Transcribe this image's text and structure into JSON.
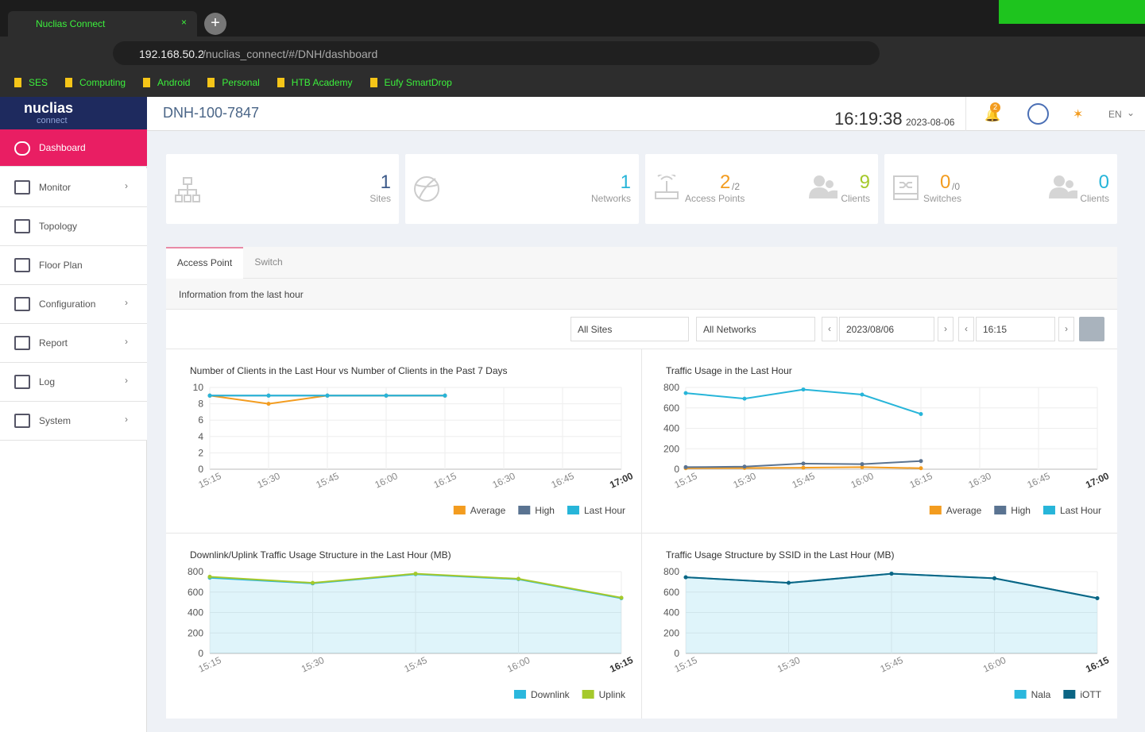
{
  "browser": {
    "tab_title": "Nuclias Connect",
    "url_host": "192.168.50.2",
    "url_path": "/nuclias_connect/#/DNH/dashboard",
    "bookmarks": [
      "SES",
      "Computing",
      "Android",
      "Personal",
      "HTB Academy",
      "Eufy SmartDrop"
    ]
  },
  "sidebar": {
    "logo": "nuclias",
    "logo_sub": "connect",
    "menu": [
      "Dashboard",
      "Monitor",
      "Topology",
      "Floor Plan",
      "Configuration",
      "Report",
      "Log",
      "System"
    ]
  },
  "header": {
    "device": "DNH-100-7847",
    "time": "16:19:38",
    "date": "2023-08-06",
    "notifications": 2,
    "language": "EN"
  },
  "cards": [
    {
      "value": 1,
      "label": "Sites"
    },
    {
      "value": 1,
      "label": "Networks"
    },
    {
      "value": 2,
      "total": "/2",
      "label": "Access Points",
      "clients": 9,
      "clients_label": "Clients"
    },
    {
      "value": 0,
      "total": "/0",
      "label": "Switches",
      "clients": 0,
      "clients_label": "Clients"
    }
  ],
  "tabs": [
    "Access Point",
    "Switch"
  ],
  "info": "Information from the last hour",
  "filters": [
    "All Sites",
    "All Networks",
    "2023/08/06",
    "16:15"
  ],
  "charts": [
    {
      "type": "line",
      "title": "Number of Clients in the Last Hour vs Number of Clients in the Past 7 Days",
      "categories": [
        "15:15",
        "15:30",
        "15:45",
        "16:00",
        "16:15",
        "16:30",
        "16:45",
        "17:00"
      ],
      "series": [
        {
          "name": "Average",
          "color": "#f39c1f",
          "values": [
            9,
            8,
            9,
            9,
            9,
            null,
            null,
            null
          ]
        },
        {
          "name": "High",
          "color": "#5a7391",
          "values": [
            9,
            9,
            9,
            9,
            9,
            null,
            null,
            null
          ]
        },
        {
          "name": "Last Hour",
          "color": "#27b5d9",
          "values": [
            9,
            9,
            9,
            9,
            9,
            null,
            null,
            null
          ]
        }
      ],
      "ylim": [
        0,
        10
      ],
      "yticks": [
        0,
        2,
        4,
        6,
        8,
        10
      ],
      "grid": true,
      "legend": "bottom-right"
    },
    {
      "type": "line",
      "title": "Traffic Usage in the Last Hour",
      "categories": [
        "15:15",
        "15:30",
        "15:45",
        "16:00",
        "16:15",
        "16:30",
        "16:45",
        "17:00"
      ],
      "series": [
        {
          "name": "Average",
          "color": "#f39c1f",
          "values": [
            10,
            12,
            15,
            20,
            10,
            null,
            null,
            null
          ]
        },
        {
          "name": "High",
          "color": "#5a7391",
          "values": [
            20,
            25,
            55,
            50,
            80,
            null,
            null,
            null
          ]
        },
        {
          "name": "Last Hour",
          "color": "#27b5d9",
          "values": [
            745,
            690,
            780,
            730,
            540,
            null,
            null,
            null
          ]
        }
      ],
      "ylim": [
        0,
        800
      ],
      "yticks": [
        0,
        200,
        400,
        600,
        800
      ],
      "grid": true,
      "legend": "bottom-right"
    },
    {
      "type": "area",
      "title": "Downlink/Uplink Traffic Usage Structure in the Last Hour (MB)",
      "categories": [
        "15:15",
        "15:30",
        "15:45",
        "16:00",
        "16:15"
      ],
      "series": [
        {
          "name": "Downlink",
          "color": "#2ab7dd",
          "values": [
            740,
            685,
            775,
            725,
            540
          ]
        },
        {
          "name": "Uplink",
          "color": "#a5c92b",
          "values": [
            750,
            690,
            780,
            730,
            545
          ]
        }
      ],
      "ylim": [
        0,
        800
      ],
      "yticks": [
        0,
        200,
        400,
        600,
        800
      ],
      "grid": true,
      "legend": "bottom-right"
    },
    {
      "type": "area",
      "title": "Traffic Usage Structure by SSID in the Last Hour (MB)",
      "categories": [
        "15:15",
        "15:30",
        "15:45",
        "16:00",
        "16:15"
      ],
      "series": [
        {
          "name": "Nala",
          "color": "#2ab7dd",
          "values": [
            745,
            690,
            780,
            735,
            540
          ]
        },
        {
          "name": "iOTT",
          "color": "#0b6584",
          "values": [
            745,
            690,
            780,
            735,
            540
          ]
        }
      ],
      "ylim": [
        0,
        800
      ],
      "yticks": [
        0,
        200,
        400,
        600,
        800
      ],
      "grid": true,
      "legend": "bottom-right"
    }
  ]
}
